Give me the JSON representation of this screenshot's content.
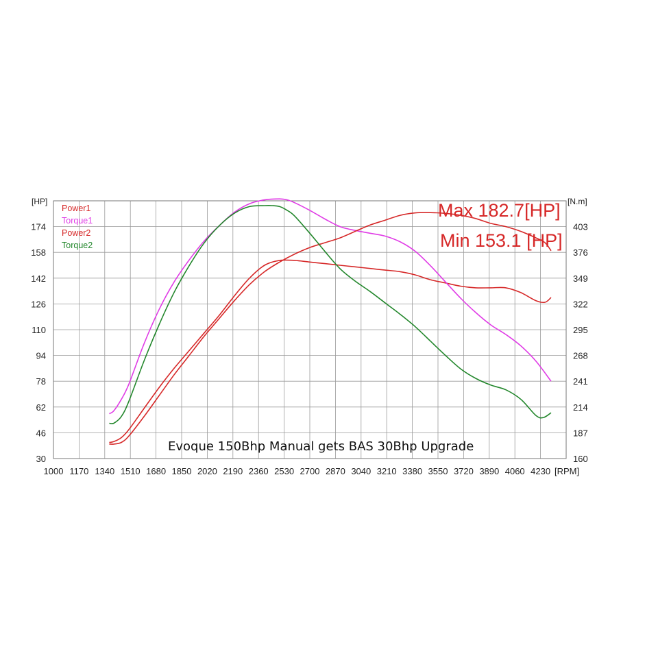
{
  "chart_data": {
    "type": "line",
    "xlabel": "[RPM]",
    "ylabel_left": "[HP]",
    "ylabel_right": "[N.m]",
    "xlim": [
      1000,
      4400
    ],
    "ylim_left": [
      30,
      190
    ],
    "ylim_right": [
      160,
      427
    ],
    "x_ticks": [
      1000,
      1170,
      1340,
      1510,
      1680,
      1850,
      2020,
      2190,
      2360,
      2530,
      2700,
      2870,
      3040,
      3210,
      3380,
      3550,
      3720,
      3890,
      4060,
      4230
    ],
    "x_ticks_highlight": [
      1000,
      1680,
      2360,
      3040,
      3720
    ],
    "x_tick_highlight_color": "#d62828",
    "y_ticks_left": [
      30,
      46,
      62,
      78,
      94,
      110,
      126,
      142,
      158,
      174
    ],
    "y_ticks_right": [
      160,
      187,
      214,
      241,
      268,
      295,
      322,
      349,
      376,
      403
    ],
    "grid": true,
    "legend_position": "top-left",
    "annotations": [
      "Max 182.7[HP]",
      "Min 153.1 [HP]"
    ],
    "caption": "Evoque 150Bhp Manual gets BAS   30Bhp Upgrade",
    "series": [
      {
        "name": "Power1",
        "color": "#d62828",
        "axis": "left",
        "x": [
          1370,
          1400,
          1450,
          1500,
          1600,
          1700,
          1800,
          1900,
          2000,
          2100,
          2200,
          2300,
          2400,
          2500,
          2600,
          2700,
          2800,
          2900,
          3000,
          3100,
          3200,
          3300,
          3400,
          3500,
          3600,
          3700,
          3800,
          3900,
          4000,
          4100,
          4200,
          4260,
          4300
        ],
        "y": [
          40,
          40.5,
          43,
          48,
          61,
          74,
          86,
          97,
          108,
          119,
          131,
          142,
          150,
          153,
          153,
          152,
          151,
          150,
          149,
          148,
          147,
          146,
          144,
          141,
          139,
          137,
          136,
          136,
          136,
          133,
          128,
          127,
          130
        ]
      },
      {
        "name": "Torque1",
        "color": "#e03ce6",
        "axis": "right",
        "x": [
          1370,
          1400,
          1450,
          1500,
          1600,
          1700,
          1800,
          1900,
          2000,
          2100,
          2200,
          2300,
          2400,
          2500,
          2550,
          2600,
          2700,
          2800,
          2900,
          3000,
          3100,
          3200,
          3300,
          3400,
          3500,
          3600,
          3700,
          3800,
          3900,
          4000,
          4100,
          4200,
          4300
        ],
        "y": [
          207,
          210,
          222,
          238,
          280,
          316,
          345,
          368,
          388,
          404,
          418,
          427,
          431,
          432,
          431,
          428,
          420,
          411,
          403,
          399,
          396,
          393,
          387,
          377,
          362,
          345,
          328,
          313,
          300,
          290,
          278,
          262,
          241
        ]
      },
      {
        "name": "Power2",
        "color": "#d62828",
        "axis": "left",
        "x": [
          1370,
          1400,
          1450,
          1500,
          1600,
          1700,
          1800,
          1900,
          2000,
          2100,
          2200,
          2300,
          2400,
          2500,
          2600,
          2700,
          2800,
          2900,
          3000,
          3100,
          3200,
          3300,
          3400,
          3500,
          3600,
          3700,
          3800,
          3900,
          4000,
          4100,
          4200,
          4260,
          4300
        ],
        "y": [
          39,
          39,
          40,
          44,
          56,
          69,
          82,
          94,
          106,
          117,
          128,
          138,
          146,
          152,
          157,
          161,
          164,
          167,
          171,
          175,
          178,
          181,
          182.5,
          182.7,
          182.2,
          181,
          179,
          176,
          174,
          171,
          167,
          164,
          159
        ]
      },
      {
        "name": "Torque2",
        "color": "#23872c",
        "axis": "right",
        "x": [
          1370,
          1400,
          1450,
          1500,
          1600,
          1700,
          1800,
          1900,
          2000,
          2100,
          2200,
          2300,
          2400,
          2450,
          2500,
          2550,
          2600,
          2700,
          2800,
          2900,
          3000,
          3100,
          3200,
          3300,
          3400,
          3500,
          3600,
          3700,
          3800,
          3900,
          4000,
          4100,
          4200,
          4250,
          4300
        ],
        "y": [
          197,
          197,
          204,
          220,
          262,
          300,
          334,
          362,
          386,
          404,
          417,
          424,
          425,
          425,
          424,
          420,
          414,
          396,
          377,
          359,
          346,
          335,
          323,
          311,
          298,
          283,
          268,
          254,
          244,
          237,
          232,
          222,
          205,
          203,
          208
        ]
      }
    ]
  }
}
